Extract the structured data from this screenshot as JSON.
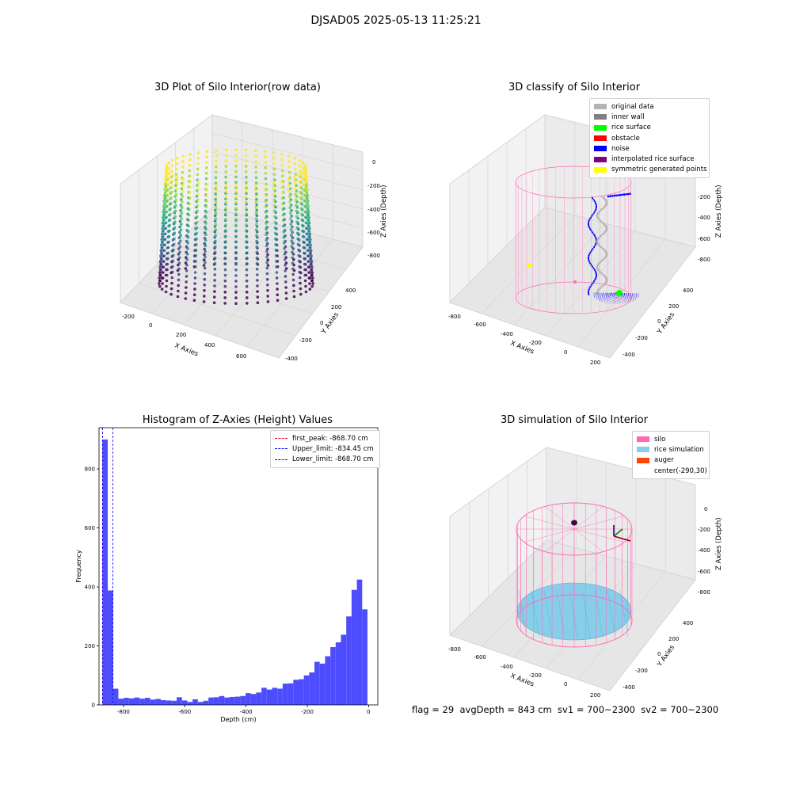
{
  "figure": {
    "suptitle": "DJSAD05 2025-05-13 11:25:21",
    "footer": "flag = 29  avgDepth = 843 cm  sv1 = 700~2300  sv2 = 700~2300"
  },
  "chart_data": [
    {
      "type": "scatter",
      "title": "3D Plot of Silo Interior(row data)",
      "xlabel": "X Axies",
      "ylabel": "Y Axies",
      "zlabel": "Z Axies (Depth)",
      "xticks": [
        "-200",
        "0",
        "200",
        "400",
        "600"
      ],
      "yticks": [
        "-400",
        "-200",
        "0",
        "200",
        "400"
      ],
      "zticks": [
        "0",
        "-200",
        "-400",
        "-600",
        "-800"
      ],
      "colormap": "viridis",
      "xlim": [
        -200,
        650
      ],
      "ylim": [
        -400,
        450
      ],
      "zlim": [
        -900,
        0
      ]
    },
    {
      "type": "scatter",
      "title": "3D classify of Silo Interior",
      "xlabel": "X Axies",
      "ylabel": "Y Axies",
      "zlabel": "Z Axies (Depth)",
      "xticks": [
        "-800",
        "-600",
        "-400",
        "-200",
        "0",
        "200"
      ],
      "yticks": [
        "-400",
        "-200",
        "0",
        "200",
        "400"
      ],
      "zticks": [
        "0",
        "-200",
        "-400",
        "-600",
        "-800"
      ],
      "legend": [
        {
          "label": "original data",
          "color": "#b4b4b4"
        },
        {
          "label": "inner wall",
          "color": "#808080"
        },
        {
          "label": "rice surface",
          "color": "#00ff00"
        },
        {
          "label": "obstacle",
          "color": "#ff0000"
        },
        {
          "label": "noise",
          "color": "#0000ff"
        },
        {
          "label": "interpolated rice surface",
          "color": "#800080"
        },
        {
          "label": "symmetric generated points",
          "color": "#ffff00"
        }
      ]
    },
    {
      "type": "bar",
      "title": "Histogram of Z-Axies (Height) Values",
      "xlabel": "Depth (cm)",
      "ylabel": "Frequency",
      "xlim": [
        -880,
        30
      ],
      "ylim": [
        0,
        940
      ],
      "xticks": [
        -800,
        -600,
        -400,
        -200,
        0
      ],
      "yticks": [
        0,
        200,
        400,
        600,
        800
      ],
      "bin_width": 17.3,
      "bin_start": -868.7,
      "values": [
        900,
        388,
        55,
        21,
        24,
        22,
        25,
        21,
        24,
        18,
        20,
        16,
        15,
        14,
        26,
        15,
        10,
        19,
        10,
        14,
        25,
        26,
        30,
        25,
        27,
        28,
        30,
        40,
        37,
        42,
        58,
        52,
        58,
        55,
        72,
        73,
        85,
        87,
        100,
        110,
        146,
        140,
        165,
        196,
        212,
        238,
        300,
        390,
        425,
        324
      ],
      "vlines": [
        {
          "label": "first_peak: -868.70 cm",
          "x": -868.7,
          "color": "#ff0000"
        },
        {
          "label": "Upper_limit: -834.45 cm",
          "x": -834.45,
          "color": "#0000ff"
        },
        {
          "label": "Lower_limit: -868.70 cm",
          "x": -868.7,
          "color": "#0000ff"
        }
      ],
      "bar_color": "#4d4dff"
    },
    {
      "type": "scatter",
      "title": "3D simulation of Silo Interior",
      "xlabel": "X Axies",
      "ylabel": "Y Axies",
      "zlabel": "Z Axies (Depth)",
      "xticks": [
        "-800",
        "-600",
        "-400",
        "-200",
        "0",
        "200"
      ],
      "yticks": [
        "-400",
        "-200",
        "0",
        "200",
        "400"
      ],
      "zticks": [
        "0",
        "-200",
        "-400",
        "-600",
        "-800"
      ],
      "legend": [
        {
          "label": "silo",
          "color": "#ff69b4"
        },
        {
          "label": "rice simulation",
          "color": "#87ceeb"
        },
        {
          "label": "auger",
          "color": "#ff4500"
        },
        {
          "label": "center(-290,30)",
          "color": ""
        }
      ]
    }
  ]
}
